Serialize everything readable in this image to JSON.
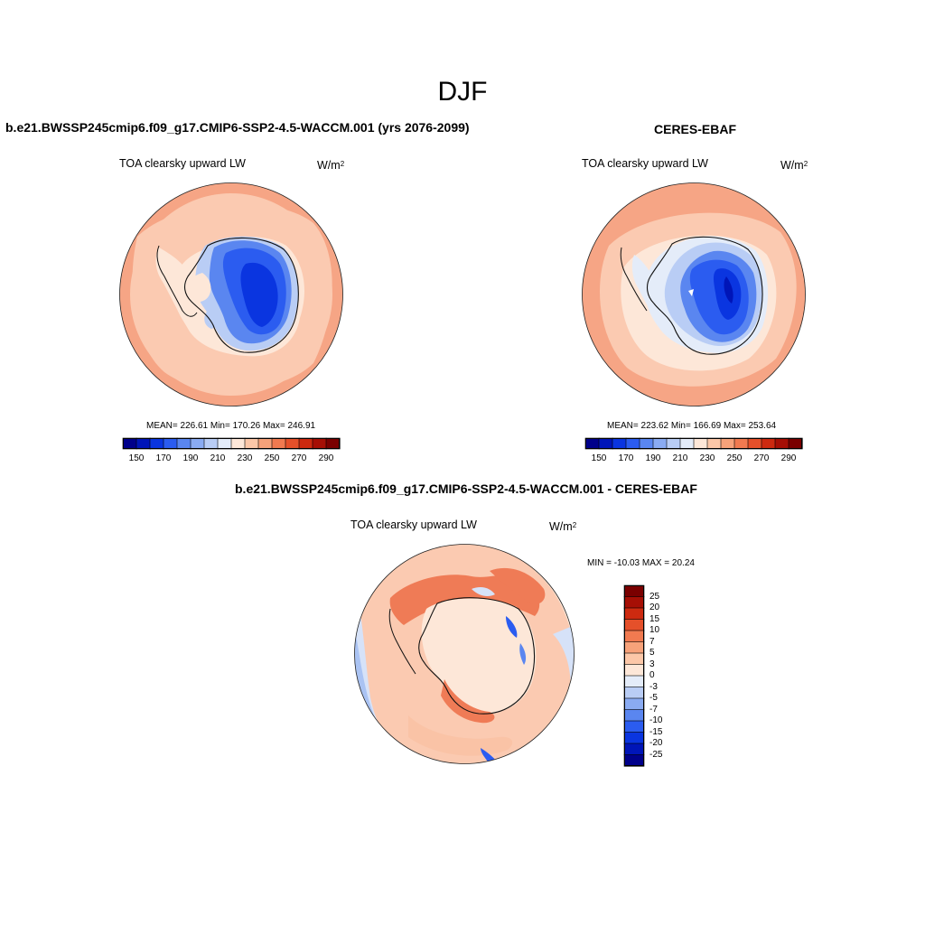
{
  "figure": {
    "title": "DJF"
  },
  "panels": [
    {
      "id": "model",
      "case_title": "b.e21.BWSSP245cmip6.f09_g17.CMIP6-SSP2-4.5-WACCM.001 (yrs 2076-2099)",
      "variable_title": "TOA clearsky upward LW",
      "units_base": "W/m",
      "units_exp": "2",
      "stats": "MEAN= 226.61  Min= 170.26  Max= 246.91"
    },
    {
      "id": "obs",
      "case_title": "CERES-EBAF",
      "variable_title": "TOA clearsky upward LW",
      "units_base": "W/m",
      "units_exp": "2",
      "stats": "MEAN= 223.62  Min= 166.69  Max= 253.64"
    },
    {
      "id": "diff",
      "case_title": "b.e21.BWSSP245cmip6.f09_g17.CMIP6-SSP2-4.5-WACCM.001 - CERES-EBAF",
      "variable_title": "TOA clearsky upward LW",
      "units_base": "W/m",
      "units_exp": "2",
      "stats": "MIN = -10.03 MAX =  20.24"
    }
  ],
  "colorbars": {
    "absolute": {
      "colors": [
        "#00008a",
        "#0015b8",
        "#0a35e0",
        "#2b5cf0",
        "#5a86f0",
        "#8aabf2",
        "#b9cdf5",
        "#e4ecf9",
        "#fde7d8",
        "#fcc7a8",
        "#f7a27a",
        "#f17a50",
        "#e5502a",
        "#cd2a10",
        "#a60f05",
        "#7a0000"
      ],
      "tick_labels": [
        "150",
        "170",
        "190",
        "210",
        "230",
        "250",
        "270",
        "290"
      ]
    },
    "difference": {
      "colors": [
        "#00008a",
        "#0015b8",
        "#0a35e0",
        "#2b5cf0",
        "#5a86f0",
        "#8aabf2",
        "#b9cdf5",
        "#e4ecf9",
        "#fde7d8",
        "#fcc7a8",
        "#f7a27a",
        "#f17a50",
        "#e5502a",
        "#cd2a10",
        "#a60f05",
        "#7a0000"
      ],
      "tick_labels": [
        "25",
        "20",
        "15",
        "10",
        "7",
        "5",
        "3",
        "0",
        "-3",
        "-5",
        "-7",
        "-10",
        "-15",
        "-20",
        "-25"
      ]
    }
  },
  "map_colors": {
    "ocean_warm": "#f6a585",
    "ocean_mid": "#fbcab1",
    "ocean_light": "#fde7d8",
    "ice_pale": "#e4ecf9",
    "ice_light": "#b9cdf5",
    "ice_mid": "#5a86f0",
    "ice_deep": "#2b5cf0",
    "ice_core": "#0a35e0",
    "diff_pos_weak": "#fde7d8",
    "diff_pos_mid": "#fac3a6",
    "diff_pos_strong": "#ef7b56",
    "diff_neg_weak": "#d6e2f8",
    "diff_neg_mid": "#aac3f3"
  }
}
